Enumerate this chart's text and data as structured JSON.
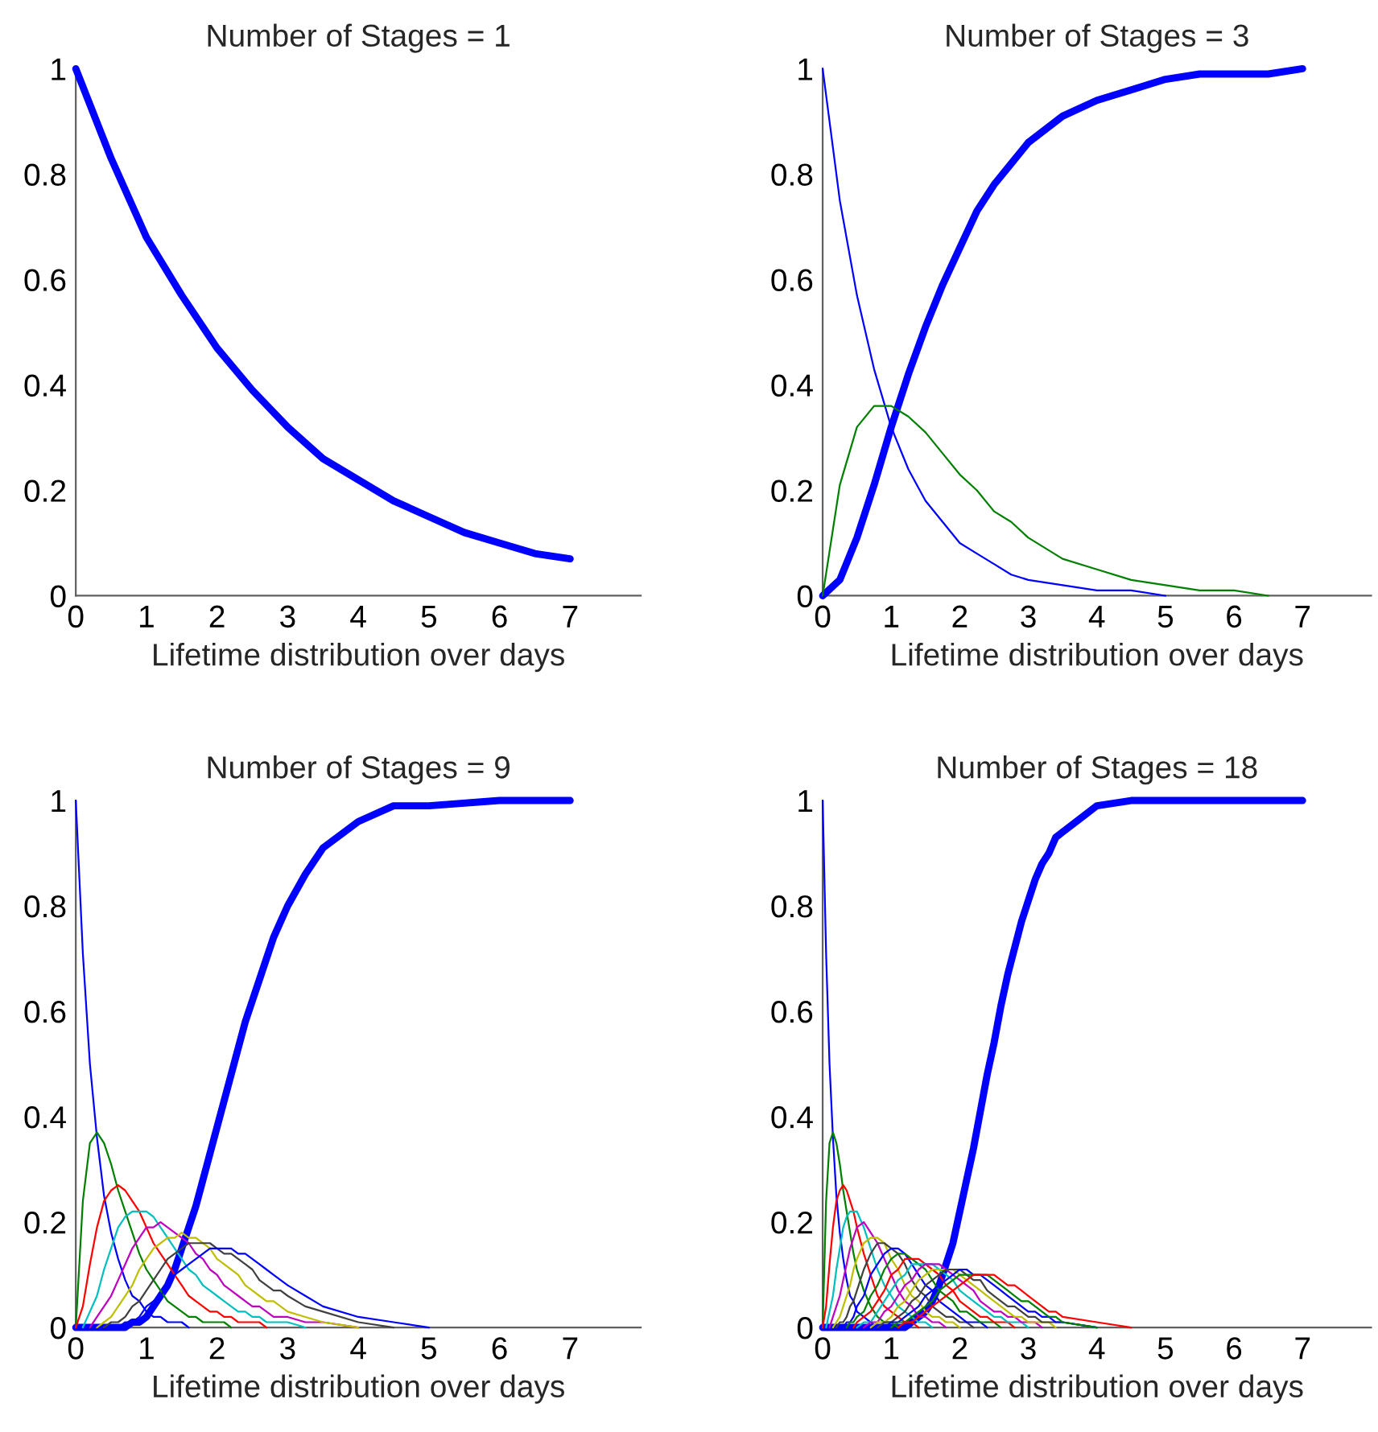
{
  "chart_data": [
    {
      "type": "line",
      "title": "Number of Stages = 1",
      "xlabel": "Lifetime distribution over days",
      "xlim": [
        0,
        8
      ],
      "xticks": [
        0,
        1,
        2,
        3,
        4,
        5,
        6,
        7
      ],
      "ylim": [
        0,
        1
      ],
      "yticks": [
        0,
        0.2,
        0.4,
        0.6,
        0.8,
        1
      ],
      "grid": false,
      "legend": false,
      "x": [
        0,
        0.5,
        1,
        1.5,
        2,
        2.5,
        3,
        3.5,
        4,
        4.5,
        5,
        5.5,
        6,
        6.5,
        7
      ],
      "series": [
        {
          "color": "#0000ff",
          "values": [
            1,
            0.83,
            0.68,
            0.57,
            0.47,
            0.39,
            0.32,
            0.26,
            0.22,
            0.18,
            0.15,
            0.12,
            0.1,
            0.08,
            0.07
          ]
        }
      ]
    },
    {
      "type": "line",
      "title": "Number of Stages = 3",
      "xlabel": "Lifetime distribution over days",
      "xlim": [
        0,
        8
      ],
      "xticks": [
        0,
        1,
        2,
        3,
        4,
        5,
        6,
        7
      ],
      "ylim": [
        0,
        1
      ],
      "yticks": [
        0,
        0.2,
        0.4,
        0.6,
        0.8,
        1
      ],
      "grid": false,
      "legend": false,
      "x": [
        0,
        0.25,
        0.5,
        0.75,
        1,
        1.25,
        1.5,
        1.75,
        2,
        2.25,
        2.5,
        2.75,
        3,
        3.5,
        4,
        4.5,
        5,
        5.5,
        6,
        6.5,
        7
      ],
      "series": [
        {
          "color": "#0000ff",
          "values": [
            1,
            0.75,
            0.57,
            0.43,
            0.32,
            0.24,
            0.18,
            0.14,
            0.1,
            0.08,
            0.06,
            0.04,
            0.03,
            0.02,
            0.01,
            0.01,
            0,
            null,
            null,
            null,
            null
          ]
        },
        {
          "color": "#008000",
          "values": [
            0,
            0.21,
            0.32,
            0.36,
            0.36,
            0.34,
            0.31,
            0.27,
            0.23,
            0.2,
            0.16,
            0.14,
            0.11,
            0.07,
            0.05,
            0.03,
            0.02,
            0.01,
            0.01,
            0,
            null
          ]
        },
        {
          "color": "#0000ff",
          "values": [
            0,
            0.03,
            0.11,
            0.21,
            0.32,
            0.42,
            0.51,
            0.59,
            0.66,
            0.73,
            0.78,
            0.82,
            0.86,
            0.91,
            0.94,
            0.96,
            0.98,
            0.99,
            0.99,
            0.99,
            1
          ]
        }
      ]
    },
    {
      "type": "line",
      "title": "Number of Stages = 9",
      "xlabel": "Lifetime distribution over days",
      "xlim": [
        0,
        8
      ],
      "xticks": [
        0,
        1,
        2,
        3,
        4,
        5,
        6,
        7
      ],
      "ylim": [
        0,
        1
      ],
      "yticks": [
        0,
        0.2,
        0.4,
        0.6,
        0.8,
        1
      ],
      "grid": false,
      "legend": false,
      "x": [
        0,
        0.1,
        0.2,
        0.3,
        0.4,
        0.5,
        0.6,
        0.7,
        0.8,
        0.9,
        1,
        1.1,
        1.2,
        1.3,
        1.4,
        1.5,
        1.6,
        1.7,
        1.8,
        1.9,
        2,
        2.1,
        2.2,
        2.3,
        2.4,
        2.5,
        2.6,
        2.7,
        2.8,
        2.9,
        3,
        3.25,
        3.5,
        4,
        4.5,
        5,
        6,
        7
      ],
      "series": [
        {
          "color": "#0000ff",
          "values": [
            1,
            0.71,
            0.5,
            0.36,
            0.25,
            0.18,
            0.13,
            0.09,
            0.06,
            0.05,
            0.03,
            0.02,
            0.02,
            0.01,
            0.01,
            0.01,
            0,
            null,
            null,
            null,
            null,
            null,
            null,
            null,
            null,
            null,
            null,
            null,
            null,
            null,
            null,
            null,
            null,
            null,
            null,
            null,
            null,
            null
          ]
        },
        {
          "color": "#008000",
          "values": [
            0,
            0.24,
            0.35,
            0.37,
            0.35,
            0.31,
            0.26,
            0.22,
            0.18,
            0.14,
            0.11,
            0.09,
            0.07,
            0.05,
            0.04,
            0.03,
            0.02,
            0.02,
            0.01,
            0.01,
            0.01,
            0.01,
            0,
            null,
            null,
            null,
            null,
            null,
            null,
            null,
            null,
            null,
            null,
            null,
            null,
            null,
            null,
            null
          ]
        },
        {
          "color": "#ff0000",
          "values": [
            0,
            0.04,
            0.12,
            0.19,
            0.24,
            0.26,
            0.27,
            0.26,
            0.24,
            0.22,
            0.19,
            0.16,
            0.14,
            0.12,
            0.1,
            0.08,
            0.06,
            0.05,
            0.04,
            0.03,
            0.03,
            0.02,
            0.02,
            0.01,
            0.01,
            0.01,
            0.01,
            0,
            null,
            null,
            null,
            null,
            null,
            null,
            null,
            null,
            null,
            null
          ]
        },
        {
          "color": "#00bfbf",
          "values": [
            null,
            0,
            0.03,
            0.06,
            0.11,
            0.15,
            0.19,
            0.21,
            0.22,
            0.22,
            0.22,
            0.21,
            0.19,
            0.17,
            0.15,
            0.13,
            0.11,
            0.1,
            0.08,
            0.07,
            0.06,
            0.05,
            0.04,
            0.03,
            0.03,
            0.02,
            0.02,
            0.01,
            0.01,
            0.01,
            0.01,
            0,
            null,
            null,
            null,
            null,
            null,
            null
          ]
        },
        {
          "color": "#bf00bf",
          "values": [
            null,
            null,
            0,
            0.02,
            0.04,
            0.06,
            0.09,
            0.12,
            0.15,
            0.17,
            0.19,
            0.19,
            0.2,
            0.19,
            0.18,
            0.17,
            0.16,
            0.14,
            0.13,
            0.11,
            0.1,
            0.08,
            0.07,
            0.06,
            0.05,
            0.04,
            0.04,
            0.03,
            0.02,
            0.02,
            0.02,
            0.01,
            0.01,
            0,
            null,
            null,
            null,
            null
          ]
        },
        {
          "color": "#bfbf00",
          "values": [
            null,
            null,
            null,
            0,
            0.01,
            0.02,
            0.04,
            0.06,
            0.08,
            0.11,
            0.13,
            0.15,
            0.16,
            0.17,
            0.17,
            0.18,
            0.17,
            0.17,
            0.16,
            0.15,
            0.13,
            0.12,
            0.11,
            0.1,
            0.08,
            0.07,
            0.06,
            0.05,
            0.05,
            0.04,
            0.03,
            0.02,
            0.01,
            0,
            null,
            null,
            null,
            null
          ]
        },
        {
          "color": "#404040",
          "values": [
            null,
            null,
            null,
            null,
            0,
            0.01,
            0.01,
            0.02,
            0.04,
            0.05,
            0.07,
            0.09,
            0.11,
            0.13,
            0.14,
            0.15,
            0.16,
            0.16,
            0.16,
            0.16,
            0.15,
            0.14,
            0.14,
            0.13,
            0.12,
            0.11,
            0.09,
            0.08,
            0.07,
            0.07,
            0.06,
            0.04,
            0.03,
            0.01,
            0,
            null,
            null,
            null
          ]
        },
        {
          "color": "#0000ff",
          "values": [
            null,
            null,
            null,
            null,
            null,
            null,
            0,
            0.01,
            0.01,
            0.02,
            0.04,
            0.05,
            0.06,
            0.08,
            0.1,
            0.11,
            0.12,
            0.13,
            0.14,
            0.15,
            0.15,
            0.15,
            0.15,
            0.14,
            0.14,
            0.13,
            0.12,
            0.11,
            0.1,
            0.09,
            0.08,
            0.06,
            0.04,
            0.02,
            0.01,
            0,
            null,
            null
          ]
        },
        {
          "color": "#0000ff",
          "values": [
            0,
            0,
            0,
            0,
            0,
            0,
            0,
            0,
            0.01,
            0.01,
            0.02,
            0.04,
            0.06,
            0.08,
            0.11,
            0.15,
            0.19,
            0.23,
            0.28,
            0.33,
            0.38,
            0.43,
            0.48,
            0.53,
            0.58,
            0.62,
            0.66,
            0.7,
            0.74,
            0.77,
            0.8,
            0.86,
            0.91,
            0.96,
            0.99,
            0.99,
            1,
            1
          ]
        }
      ]
    },
    {
      "type": "line",
      "title": "Number of Stages = 18",
      "xlabel": "Lifetime distribution over days",
      "xlim": [
        0,
        8
      ],
      "xticks": [
        0,
        1,
        2,
        3,
        4,
        5,
        6,
        7
      ],
      "ylim": [
        0,
        1
      ],
      "yticks": [
        0,
        0.2,
        0.4,
        0.6,
        0.8,
        1
      ],
      "grid": false,
      "legend": false,
      "x": [
        0,
        0.05,
        0.1,
        0.15,
        0.2,
        0.25,
        0.3,
        0.35,
        0.4,
        0.45,
        0.5,
        0.6,
        0.7,
        0.8,
        0.9,
        1,
        1.1,
        1.2,
        1.3,
        1.4,
        1.5,
        1.6,
        1.7,
        1.8,
        1.9,
        2,
        2.1,
        2.2,
        2.3,
        2.4,
        2.5,
        2.6,
        2.7,
        2.8,
        2.9,
        3,
        3.1,
        3.2,
        3.3,
        3.4,
        3.5,
        4,
        4.5,
        5,
        6,
        7
      ],
      "series": [
        {
          "color": "#0000ff",
          "values": [
            1,
            0.71,
            0.5,
            0.36,
            0.25,
            0.18,
            0.13,
            0.09,
            0.06,
            0.05,
            0.03,
            0.02,
            0.01,
            0,
            null,
            null,
            null,
            null,
            null,
            null,
            null,
            null,
            null,
            null,
            null,
            null,
            null,
            null,
            null,
            null,
            null,
            null,
            null,
            null,
            null,
            null,
            null,
            null,
            null,
            null,
            null,
            null,
            null,
            null,
            null,
            null
          ]
        },
        {
          "color": "#008000",
          "values": [
            0,
            0.24,
            0.35,
            0.37,
            0.35,
            0.31,
            0.26,
            0.22,
            0.18,
            0.14,
            0.11,
            0.07,
            0.04,
            0.02,
            0.01,
            0.01,
            0,
            null,
            null,
            null,
            null,
            null,
            null,
            null,
            null,
            null,
            null,
            null,
            null,
            null,
            null,
            null,
            null,
            null,
            null,
            null,
            null,
            null,
            null,
            null,
            null,
            null,
            null,
            null,
            null,
            null
          ]
        },
        {
          "color": "#ff0000",
          "values": [
            0,
            0.04,
            0.12,
            0.19,
            0.24,
            0.26,
            0.27,
            0.26,
            0.24,
            0.22,
            0.19,
            0.14,
            0.1,
            0.06,
            0.04,
            0.03,
            0.02,
            0.01,
            0.01,
            0,
            null,
            null,
            null,
            null,
            null,
            null,
            null,
            null,
            null,
            null,
            null,
            null,
            null,
            null,
            null,
            null,
            null,
            null,
            null,
            null,
            null,
            null,
            null,
            null,
            null,
            null
          ]
        },
        {
          "color": "#00bfbf",
          "values": [
            null,
            0,
            0.03,
            0.06,
            0.11,
            0.15,
            0.19,
            0.21,
            0.22,
            0.22,
            0.22,
            0.19,
            0.15,
            0.11,
            0.08,
            0.06,
            0.04,
            0.03,
            0.02,
            0.01,
            0.01,
            0,
            null,
            null,
            null,
            null,
            null,
            null,
            null,
            null,
            null,
            null,
            null,
            null,
            null,
            null,
            null,
            null,
            null,
            null,
            null,
            null,
            null,
            null,
            null,
            null
          ]
        },
        {
          "color": "#bf00bf",
          "values": [
            null,
            null,
            0,
            0.02,
            0.04,
            0.06,
            0.09,
            0.12,
            0.15,
            0.17,
            0.19,
            0.2,
            0.18,
            0.16,
            0.13,
            0.1,
            0.07,
            0.05,
            0.04,
            0.02,
            0.02,
            0.01,
            0.01,
            0,
            null,
            null,
            null,
            null,
            null,
            null,
            null,
            null,
            null,
            null,
            null,
            null,
            null,
            null,
            null,
            null,
            null,
            null,
            null,
            null,
            null,
            null
          ]
        },
        {
          "color": "#bfbf00",
          "values": [
            null,
            null,
            null,
            0,
            0.01,
            0.02,
            0.04,
            0.06,
            0.08,
            0.11,
            0.13,
            0.16,
            0.17,
            0.17,
            0.16,
            0.13,
            0.11,
            0.08,
            0.06,
            0.05,
            0.03,
            0.02,
            0.02,
            0.01,
            0.01,
            0,
            null,
            null,
            null,
            null,
            null,
            null,
            null,
            null,
            null,
            null,
            null,
            null,
            null,
            null,
            null,
            null,
            null,
            null,
            null,
            null
          ]
        },
        {
          "color": "#404040",
          "values": [
            null,
            null,
            null,
            null,
            0,
            0.01,
            0.01,
            0.02,
            0.04,
            0.05,
            0.07,
            0.11,
            0.14,
            0.16,
            0.16,
            0.15,
            0.14,
            0.12,
            0.09,
            0.07,
            0.06,
            0.04,
            0.03,
            0.02,
            0.02,
            0.01,
            0.01,
            0,
            null,
            null,
            null,
            null,
            null,
            null,
            null,
            null,
            null,
            null,
            null,
            null,
            null,
            null,
            null,
            null,
            null,
            null
          ]
        },
        {
          "color": "#0000ff",
          "values": [
            null,
            null,
            null,
            null,
            null,
            null,
            0,
            0.01,
            0.01,
            0.02,
            0.04,
            0.06,
            0.1,
            0.12,
            0.14,
            0.15,
            0.15,
            0.14,
            0.12,
            0.1,
            0.08,
            0.07,
            0.05,
            0.04,
            0.03,
            0.02,
            0.01,
            0.01,
            0.01,
            0,
            null,
            null,
            null,
            null,
            null,
            null,
            null,
            null,
            null,
            null,
            null,
            null,
            null,
            null,
            null,
            null
          ]
        },
        {
          "color": "#008000",
          "values": [
            null,
            null,
            null,
            null,
            null,
            null,
            null,
            0,
            0.01,
            0.01,
            0.02,
            0.03,
            0.06,
            0.08,
            0.11,
            0.13,
            0.14,
            0.14,
            0.13,
            0.12,
            0.11,
            0.09,
            0.07,
            0.06,
            0.05,
            0.03,
            0.03,
            0.02,
            0.01,
            0.01,
            0.01,
            0,
            null,
            null,
            null,
            null,
            null,
            null,
            null,
            null,
            null,
            null,
            null,
            null,
            null,
            null
          ]
        },
        {
          "color": "#ff0000",
          "values": [
            null,
            null,
            null,
            null,
            null,
            null,
            null,
            null,
            null,
            0,
            0.01,
            0.02,
            0.03,
            0.05,
            0.07,
            0.1,
            0.11,
            0.13,
            0.13,
            0.13,
            0.12,
            0.11,
            0.1,
            0.08,
            0.07,
            0.05,
            0.04,
            0.03,
            0.02,
            0.02,
            0.01,
            0.01,
            0.01,
            0,
            null,
            null,
            null,
            null,
            null,
            null,
            null,
            null,
            null,
            null,
            null,
            null
          ]
        },
        {
          "color": "#00bfbf",
          "values": [
            null,
            null,
            null,
            null,
            null,
            null,
            null,
            null,
            null,
            null,
            0,
            0.01,
            0.01,
            0.03,
            0.05,
            0.07,
            0.09,
            0.1,
            0.12,
            0.12,
            0.12,
            0.12,
            0.11,
            0.1,
            0.09,
            0.07,
            0.06,
            0.05,
            0.04,
            0.03,
            0.02,
            0.02,
            0.01,
            0.01,
            0.01,
            0,
            null,
            null,
            null,
            null,
            null,
            null,
            null,
            null,
            null,
            null
          ]
        },
        {
          "color": "#bf00bf",
          "values": [
            null,
            null,
            null,
            null,
            null,
            null,
            null,
            null,
            null,
            null,
            null,
            0,
            0.01,
            0.01,
            0.03,
            0.04,
            0.06,
            0.08,
            0.09,
            0.11,
            0.12,
            0.12,
            0.12,
            0.11,
            0.1,
            0.09,
            0.08,
            0.07,
            0.05,
            0.04,
            0.03,
            0.03,
            0.02,
            0.02,
            0.01,
            0.01,
            0.01,
            0,
            null,
            null,
            null,
            null,
            null,
            null,
            null,
            null
          ]
        },
        {
          "color": "#bfbf00",
          "values": [
            null,
            null,
            null,
            null,
            null,
            null,
            null,
            null,
            null,
            null,
            null,
            null,
            0,
            0.01,
            0.01,
            0.02,
            0.04,
            0.05,
            0.07,
            0.09,
            0.1,
            0.11,
            0.11,
            0.11,
            0.11,
            0.1,
            0.09,
            0.08,
            0.07,
            0.06,
            0.05,
            0.04,
            0.03,
            0.02,
            0.02,
            0.01,
            0.01,
            0.01,
            0.01,
            0,
            null,
            null,
            null,
            null,
            null,
            null
          ]
        },
        {
          "color": "#404040",
          "values": [
            null,
            null,
            null,
            null,
            null,
            null,
            null,
            null,
            null,
            null,
            null,
            null,
            null,
            0,
            0.01,
            0.01,
            0.02,
            0.03,
            0.05,
            0.06,
            0.08,
            0.09,
            0.1,
            0.11,
            0.11,
            0.11,
            0.1,
            0.09,
            0.09,
            0.07,
            0.06,
            0.05,
            0.04,
            0.04,
            0.03,
            0.02,
            0.02,
            0.01,
            0.01,
            0.01,
            0.01,
            0,
            null,
            null,
            null,
            null
          ]
        },
        {
          "color": "#0000ff",
          "values": [
            null,
            null,
            null,
            null,
            null,
            null,
            null,
            null,
            null,
            null,
            null,
            null,
            null,
            null,
            0,
            0.01,
            0.01,
            0.02,
            0.03,
            0.04,
            0.06,
            0.07,
            0.08,
            0.09,
            0.1,
            0.11,
            0.11,
            0.1,
            0.1,
            0.09,
            0.08,
            0.07,
            0.06,
            0.05,
            0.04,
            0.03,
            0.03,
            0.02,
            0.02,
            0.01,
            0.01,
            0,
            null,
            null,
            null,
            null
          ]
        },
        {
          "color": "#008000",
          "values": [
            null,
            null,
            null,
            null,
            null,
            null,
            null,
            null,
            null,
            null,
            null,
            null,
            null,
            null,
            null,
            0,
            0.01,
            0.01,
            0.02,
            0.03,
            0.04,
            0.05,
            0.07,
            0.08,
            0.09,
            0.1,
            0.1,
            0.1,
            0.1,
            0.1,
            0.09,
            0.08,
            0.07,
            0.06,
            0.05,
            0.05,
            0.04,
            0.03,
            0.02,
            0.02,
            0.01,
            0,
            null,
            null,
            null,
            null
          ]
        },
        {
          "color": "#ff0000",
          "values": [
            null,
            null,
            null,
            null,
            null,
            null,
            null,
            null,
            null,
            null,
            null,
            null,
            null,
            null,
            null,
            null,
            0,
            0.01,
            0.01,
            0.02,
            0.03,
            0.04,
            0.05,
            0.06,
            0.07,
            0.08,
            0.09,
            0.1,
            0.1,
            0.1,
            0.1,
            0.09,
            0.08,
            0.08,
            0.07,
            0.06,
            0.05,
            0.04,
            0.03,
            0.03,
            0.02,
            0.01,
            0,
            null,
            null,
            null
          ]
        },
        {
          "color": "#0000ff",
          "values": [
            0,
            0,
            0,
            0,
            0,
            0,
            0,
            0,
            0,
            0,
            0,
            0,
            0,
            0,
            0,
            0,
            0,
            0,
            0.01,
            0.02,
            0.03,
            0.05,
            0.08,
            0.12,
            0.16,
            0.22,
            0.28,
            0.34,
            0.41,
            0.48,
            0.54,
            0.61,
            0.67,
            0.72,
            0.77,
            0.81,
            0.85,
            0.88,
            0.9,
            0.93,
            0.94,
            0.99,
            1,
            1,
            1,
            1
          ]
        }
      ]
    }
  ]
}
